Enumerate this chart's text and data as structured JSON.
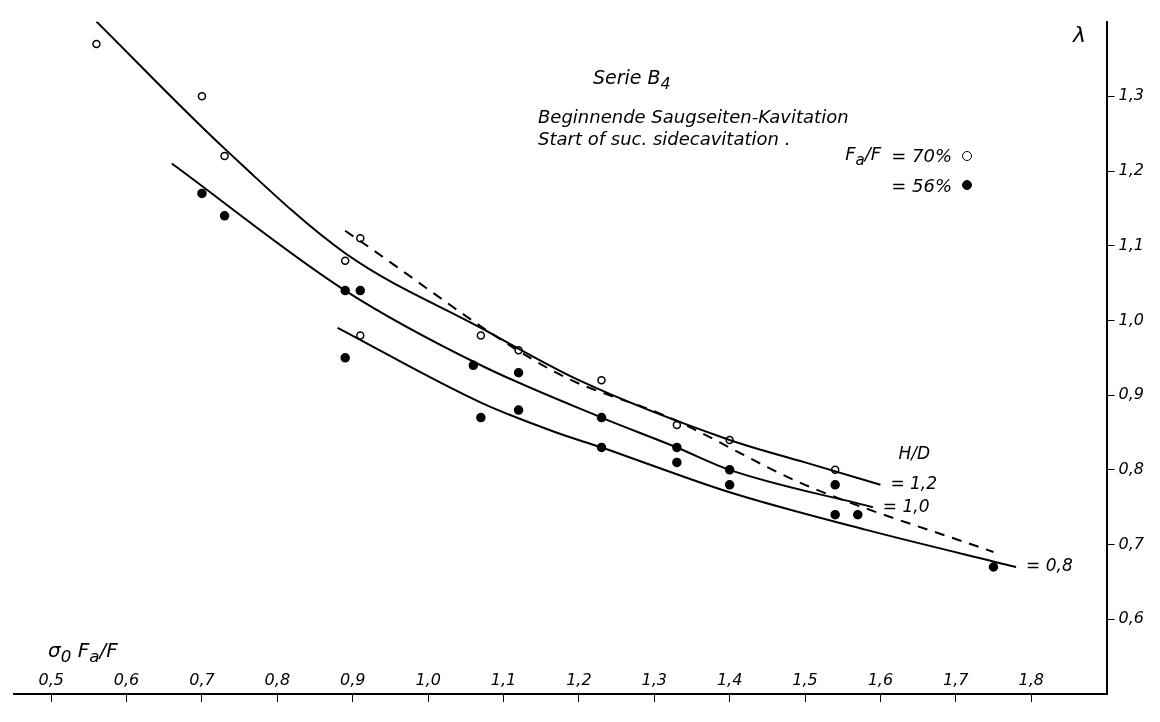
{
  "chart_data": {
    "type": "line",
    "title": "Serie B$_{4}$",
    "subtitle": "Beginnende Saugseiten-Kavitation\nStart of suc. sidecavitation .",
    "xlabel": "σ$_{0}$  F$_{a}$/F",
    "ylabel": "λ",
    "legend_title": "F$_{a}$/F",
    "legend": "top right",
    "marker": "circle",
    "xlim": [
      0.45,
      1.9
    ],
    "ylim": [
      0.5,
      1.4
    ],
    "xticks": [
      {
        "value": 0.5,
        "label": "0,5"
      },
      {
        "value": 0.6,
        "label": "0,6"
      },
      {
        "value": 0.7,
        "label": "0,7"
      },
      {
        "value": 0.8,
        "label": "0,8"
      },
      {
        "value": 0.9,
        "label": "0,9"
      },
      {
        "value": 1.0,
        "label": "1,0"
      },
      {
        "value": 1.1,
        "label": "1,1"
      },
      {
        "value": 1.2,
        "label": "1,2"
      },
      {
        "value": 1.3,
        "label": "1,3"
      },
      {
        "value": 1.4,
        "label": "1,4"
      },
      {
        "value": 1.5,
        "label": "1,5"
      },
      {
        "value": 1.6,
        "label": "1,6"
      },
      {
        "value": 1.7,
        "label": "1,7"
      },
      {
        "value": 1.8,
        "label": "1,8"
      }
    ],
    "yticks": [
      {
        "value": 0.6,
        "label": "0,6"
      },
      {
        "value": 0.7,
        "label": "0,7"
      },
      {
        "value": 0.8,
        "label": "0,8"
      },
      {
        "value": 0.9,
        "label": "0,9"
      },
      {
        "value": 1.0,
        "label": "1,0"
      },
      {
        "value": 1.1,
        "label": "1,1"
      },
      {
        "value": 1.2,
        "label": "1,2"
      },
      {
        "value": 1.3,
        "label": "1,3"
      }
    ],
    "annotations": [
      "H/D"
    ],
    "series": [
      {
        "name": "= 1,2",
        "marker": "none",
        "color": "#000000",
        "x": [
          0.56,
          0.73,
          0.89,
          1.07,
          1.2,
          1.4,
          1.5,
          1.6
        ],
        "values": [
          1.4,
          1.23,
          1.09,
          0.99,
          0.92,
          0.84,
          0.81,
          0.78
        ]
      },
      {
        "name": "= 1,0",
        "marker": "none",
        "color": "#000000",
        "x": [
          0.66,
          0.89,
          1.07,
          1.23,
          1.33,
          1.4,
          1.59
        ],
        "values": [
          1.21,
          1.04,
          0.94,
          0.87,
          0.83,
          0.8,
          0.75
        ]
      },
      {
        "name": "= 0,8",
        "marker": "none",
        "color": "#000000",
        "x": [
          0.88,
          1.07,
          1.17,
          1.23,
          1.4,
          1.58,
          1.78
        ],
        "values": [
          0.99,
          0.89,
          0.85,
          0.83,
          0.77,
          0.72,
          0.67
        ]
      },
      {
        "marker": "none",
        "line_style": "dashed",
        "color": "#000000",
        "x": [
          0.89,
          1.17,
          1.32,
          1.5,
          1.75
        ],
        "values": [
          1.12,
          0.93,
          0.87,
          0.78,
          0.69
        ]
      },
      {
        "name": "= 70%",
        "type": "scatter",
        "color": "#000000",
        "x": [
          0.56,
          0.7,
          0.73,
          0.91,
          0.89,
          1.07,
          1.12,
          0.91,
          1.23,
          1.33,
          1.4,
          1.54
        ],
        "values": [
          1.37,
          1.3,
          1.22,
          1.11,
          1.08,
          0.98,
          0.96,
          0.98,
          0.92,
          0.86,
          0.84,
          0.8
        ]
      },
      {
        "name": "= 56%",
        "type": "scatter",
        "color": "#000000",
        "x": [
          0.7,
          0.73,
          0.89,
          0.91,
          0.89,
          1.06,
          1.12,
          1.07,
          1.12,
          1.23,
          1.23,
          1.33,
          1.33,
          1.4,
          1.4,
          1.54,
          1.54,
          1.57,
          1.75
        ],
        "values": [
          1.17,
          1.14,
          1.04,
          1.04,
          0.95,
          0.94,
          0.93,
          0.87,
          0.88,
          0.87,
          0.83,
          0.83,
          0.81,
          0.8,
          0.78,
          0.78,
          0.74,
          0.74,
          0.67
        ]
      }
    ]
  }
}
